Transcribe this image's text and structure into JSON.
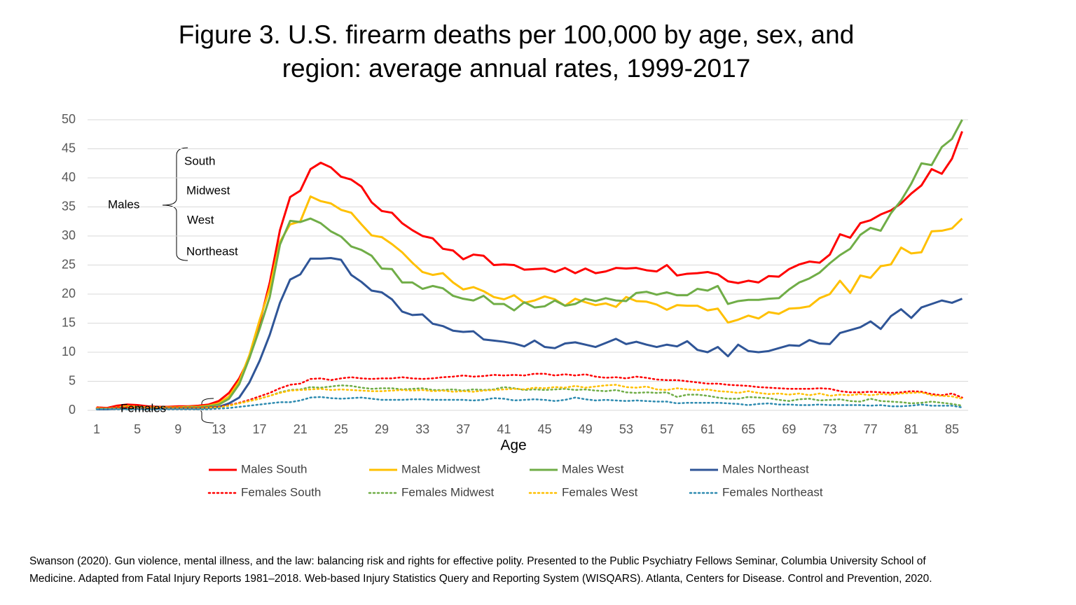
{
  "chart_data": {
    "type": "line",
    "title": [
      "Figure 3. U.S. firearm deaths per 100,000 by age, sex, and",
      "region: average annual rates, 1999-2017"
    ],
    "x_label": "Age",
    "x": [
      1,
      2,
      3,
      4,
      5,
      6,
      7,
      8,
      9,
      10,
      11,
      12,
      13,
      14,
      15,
      16,
      17,
      18,
      19,
      20,
      21,
      22,
      23,
      24,
      25,
      26,
      27,
      28,
      29,
      30,
      31,
      32,
      33,
      34,
      35,
      36,
      37,
      38,
      39,
      40,
      41,
      42,
      43,
      44,
      45,
      46,
      47,
      48,
      49,
      50,
      51,
      52,
      53,
      54,
      55,
      56,
      57,
      58,
      59,
      60,
      61,
      62,
      63,
      64,
      65,
      66,
      67,
      68,
      69,
      70,
      71,
      72,
      73,
      74,
      75,
      76,
      77,
      78,
      79,
      80,
      81,
      82,
      83,
      84,
      85,
      86
    ],
    "xlim": [
      1,
      86
    ],
    "xticks": [
      1,
      5,
      9,
      13,
      17,
      21,
      25,
      29,
      33,
      37,
      41,
      45,
      49,
      53,
      57,
      61,
      65,
      69,
      73,
      77,
      81,
      85
    ],
    "ylim": [
      0,
      50
    ],
    "yticks": [
      0,
      5,
      10,
      15,
      20,
      25,
      30,
      35,
      40,
      45,
      50
    ],
    "grid": true,
    "series": [
      {
        "name": "Males South",
        "color": "#ff0000",
        "style": "solid",
        "values": [
          0.5,
          0.4,
          0.8,
          1.0,
          0.9,
          0.7,
          0.6,
          0.6,
          0.7,
          0.7,
          0.8,
          1.0,
          1.6,
          3.0,
          5.5,
          9.0,
          15,
          22,
          31,
          36.7,
          37.8,
          41.5,
          42.6,
          41.8,
          40.2,
          39.7,
          38.5,
          35.8,
          34.3,
          34.0,
          32.2,
          31.0,
          30.0,
          29.6,
          27.8,
          27.5,
          26.0,
          26.8,
          26.6,
          25.0,
          25.1,
          25.0,
          24.2,
          24.3,
          24.4,
          23.8,
          24.5,
          23.6,
          24.4,
          23.6,
          23.9,
          24.5,
          24.4,
          24.5,
          24.1,
          23.9,
          25.0,
          23.2,
          23.5,
          23.6,
          23.8,
          23.4,
          22.2,
          21.9,
          22.3,
          22.0,
          23.1,
          23.0,
          24.3,
          25.1,
          25.6,
          25.4,
          26.8,
          30.3,
          29.7,
          32.2,
          32.7,
          33.7,
          34.4,
          35.6,
          37.3,
          38.7,
          41.5,
          40.7,
          43.3,
          48.0
        ]
      },
      {
        "name": "Males Midwest",
        "color": "#ffc000",
        "style": "solid",
        "values": [
          0.4,
          0.3,
          0.5,
          0.7,
          0.6,
          0.5,
          0.5,
          0.5,
          0.5,
          0.6,
          0.6,
          0.8,
          1.2,
          2.4,
          5.0,
          9.5,
          15.5,
          21,
          29,
          32,
          32.5,
          36.8,
          36.0,
          35.6,
          34.5,
          34.0,
          32.0,
          30.1,
          29.8,
          28.6,
          27.2,
          25.4,
          23.8,
          23.3,
          23.6,
          22.0,
          20.8,
          21.2,
          20.5,
          19.5,
          19.1,
          19.8,
          18.5,
          18.9,
          19.6,
          19.1,
          18.0,
          19.2,
          18.6,
          18.1,
          18.4,
          17.8,
          19.5,
          18.8,
          18.7,
          18.2,
          17.3,
          18.1,
          18.0,
          18.0,
          17.2,
          17.5,
          15.1,
          15.6,
          16.3,
          15.8,
          16.9,
          16.6,
          17.5,
          17.6,
          17.9,
          19.3,
          20.0,
          22.3,
          20.2,
          23.2,
          22.8,
          24.8,
          25.1,
          28.0,
          27.0,
          27.2,
          30.8,
          30.9,
          31.3,
          33.0
        ]
      },
      {
        "name": "Males West",
        "color": "#70ad47",
        "style": "solid",
        "values": [
          0.3,
          0.3,
          0.4,
          0.5,
          0.5,
          0.4,
          0.4,
          0.4,
          0.4,
          0.5,
          0.5,
          0.7,
          1.0,
          2.0,
          4.5,
          9.0,
          14.0,
          19.5,
          28.5,
          32.6,
          32.4,
          33.0,
          32.2,
          30.8,
          29.9,
          28.2,
          27.6,
          26.6,
          24.4,
          24.3,
          22.0,
          22.0,
          20.9,
          21.4,
          21.0,
          19.7,
          19.2,
          18.9,
          19.7,
          18.3,
          18.3,
          17.2,
          18.6,
          17.7,
          17.9,
          18.9,
          18.0,
          18.3,
          19.2,
          18.8,
          19.3,
          18.9,
          18.8,
          20.2,
          20.4,
          19.9,
          20.3,
          19.8,
          19.8,
          20.9,
          20.6,
          21.4,
          18.3,
          18.8,
          19.0,
          19.0,
          19.2,
          19.3,
          20.8,
          22.0,
          22.7,
          23.7,
          25.3,
          26.7,
          27.8,
          30.2,
          31.4,
          30.9,
          33.9,
          36.1,
          39.0,
          42.5,
          42.2,
          45.3,
          46.7,
          50.0
        ]
      },
      {
        "name": "Males Northeast",
        "color": "#2f5597",
        "style": "solid",
        "values": [
          0.2,
          0.2,
          0.3,
          0.3,
          0.3,
          0.3,
          0.3,
          0.3,
          0.3,
          0.3,
          0.3,
          0.4,
          0.6,
          1.2,
          2.2,
          4.8,
          8.5,
          13,
          18.5,
          22.5,
          23.4,
          26.1,
          26.1,
          26.2,
          25.9,
          23.3,
          22.1,
          20.6,
          20.3,
          19.1,
          17.0,
          16.4,
          16.5,
          14.9,
          14.5,
          13.7,
          13.5,
          13.6,
          12.2,
          12.0,
          11.8,
          11.5,
          11.0,
          12.0,
          10.9,
          10.7,
          11.5,
          11.7,
          11.3,
          10.9,
          11.6,
          12.3,
          11.4,
          11.8,
          11.3,
          10.9,
          11.3,
          11.0,
          11.9,
          10.4,
          10.0,
          10.9,
          9.3,
          11.3,
          10.2,
          10.0,
          10.2,
          10.7,
          11.2,
          11.1,
          12.1,
          11.5,
          11.4,
          13.3,
          13.8,
          14.3,
          15.3,
          14.0,
          16.2,
          17.4,
          15.9,
          17.7,
          18.3,
          18.9,
          18.5,
          19.2
        ]
      },
      {
        "name": "Females South",
        "color": "#ff0000",
        "style": "dotted",
        "values": [
          0.4,
          0.4,
          0.5,
          0.5,
          0.4,
          0.4,
          0.4,
          0.4,
          0.4,
          0.4,
          0.4,
          0.5,
          0.6,
          0.9,
          1.3,
          1.8,
          2.4,
          3.0,
          3.8,
          4.4,
          4.6,
          5.4,
          5.5,
          5.2,
          5.5,
          5.7,
          5.5,
          5.4,
          5.5,
          5.5,
          5.7,
          5.5,
          5.4,
          5.5,
          5.7,
          5.8,
          6.0,
          5.8,
          5.9,
          6.1,
          6.0,
          6.1,
          6.0,
          6.3,
          6.3,
          6.0,
          6.2,
          6.0,
          6.2,
          5.8,
          5.6,
          5.7,
          5.5,
          5.8,
          5.6,
          5.3,
          5.2,
          5.2,
          5.0,
          4.8,
          4.6,
          4.6,
          4.4,
          4.3,
          4.2,
          4.0,
          3.9,
          3.8,
          3.7,
          3.7,
          3.7,
          3.8,
          3.7,
          3.3,
          3.1,
          3.1,
          3.2,
          3.1,
          3.0,
          3.1,
          3.3,
          3.2,
          2.8,
          2.6,
          2.9,
          2.2
        ]
      },
      {
        "name": "Females Midwest",
        "color": "#70ad47",
        "style": "dotted",
        "values": [
          0.3,
          0.3,
          0.3,
          0.3,
          0.3,
          0.3,
          0.3,
          0.3,
          0.3,
          0.3,
          0.3,
          0.4,
          0.5,
          0.8,
          1.2,
          1.6,
          2.0,
          2.5,
          3.1,
          3.5,
          3.6,
          4.0,
          3.9,
          4.1,
          4.3,
          4.2,
          3.9,
          3.7,
          3.8,
          3.8,
          3.6,
          3.7,
          3.8,
          3.5,
          3.5,
          3.6,
          3.4,
          3.6,
          3.5,
          3.6,
          4.0,
          3.8,
          3.5,
          3.6,
          3.5,
          3.6,
          3.7,
          3.5,
          3.6,
          3.4,
          3.3,
          3.5,
          3.1,
          3.0,
          3.1,
          3.0,
          3.1,
          2.3,
          2.7,
          2.7,
          2.5,
          2.2,
          2.0,
          2.0,
          2.3,
          2.2,
          2.1,
          1.8,
          1.6,
          1.9,
          2.0,
          1.7,
          1.8,
          1.9,
          1.6,
          1.5,
          2.0,
          1.6,
          1.5,
          1.4,
          1.2,
          1.3,
          1.5,
          1.3,
          1.1,
          0.8
        ]
      },
      {
        "name": "Females West",
        "color": "#ffc000",
        "style": "dotted",
        "values": [
          0.3,
          0.3,
          0.3,
          0.3,
          0.3,
          0.3,
          0.3,
          0.3,
          0.3,
          0.3,
          0.3,
          0.4,
          0.5,
          0.8,
          1.2,
          1.6,
          2.0,
          2.5,
          3.0,
          3.4,
          3.5,
          3.6,
          3.7,
          3.5,
          3.6,
          3.5,
          3.4,
          3.3,
          3.3,
          3.4,
          3.5,
          3.4,
          3.5,
          3.3,
          3.4,
          3.2,
          3.3,
          3.2,
          3.4,
          3.5,
          3.6,
          3.7,
          3.6,
          3.9,
          3.8,
          4.0,
          3.9,
          4.2,
          3.9,
          4.1,
          4.3,
          4.4,
          4.0,
          3.9,
          4.1,
          3.6,
          3.5,
          3.8,
          3.6,
          3.5,
          3.6,
          3.3,
          3.2,
          3.0,
          3.3,
          3.0,
          2.8,
          2.9,
          2.7,
          2.9,
          2.6,
          2.9,
          2.5,
          2.7,
          2.6,
          2.8,
          2.6,
          2.8,
          2.7,
          2.9,
          3.0,
          3.1,
          2.6,
          2.5,
          2.4,
          2.0
        ]
      },
      {
        "name": "Females Northeast",
        "color": "#2e8bb0",
        "style": "dotted",
        "values": [
          0.2,
          0.2,
          0.2,
          0.2,
          0.2,
          0.2,
          0.2,
          0.2,
          0.2,
          0.2,
          0.2,
          0.2,
          0.3,
          0.4,
          0.6,
          0.8,
          1.0,
          1.2,
          1.4,
          1.4,
          1.7,
          2.2,
          2.3,
          2.1,
          2.0,
          2.1,
          2.2,
          2.0,
          1.8,
          1.8,
          1.8,
          1.9,
          1.9,
          1.8,
          1.8,
          1.8,
          1.8,
          1.7,
          1.8,
          2.1,
          2.0,
          1.7,
          1.8,
          1.9,
          1.8,
          1.6,
          1.8,
          2.2,
          1.9,
          1.7,
          1.8,
          1.7,
          1.6,
          1.7,
          1.6,
          1.5,
          1.5,
          1.2,
          1.3,
          1.3,
          1.3,
          1.3,
          1.2,
          1.1,
          0.9,
          1.1,
          1.2,
          1.0,
          1.0,
          0.9,
          0.9,
          1.0,
          0.9,
          0.9,
          0.9,
          0.9,
          0.8,
          0.9,
          0.7,
          0.7,
          0.8,
          1.0,
          0.8,
          0.8,
          0.8,
          0.5
        ]
      }
    ],
    "annotations": [
      {
        "text": "Males",
        "color": "#000000"
      },
      {
        "text": "Females",
        "color": "#000000"
      },
      {
        "text": "South",
        "color": "#e00000"
      },
      {
        "text": "Midwest",
        "color": "#d98c00"
      },
      {
        "text": "West",
        "color": "#5a9a3a"
      },
      {
        "text": "Northeast",
        "color": "#203f80"
      }
    ],
    "source": [
      "Swanson (2020). Gun violence, mental illness, and the law: balancing risk and rights for effective polity. Presented to the Public Psychiatry Fellows Seminar, Columbia University School of",
      "Medicine.  Adapted from Fatal Injury Reports 1981–2018.  Web-based Injury Statistics Query and Reporting System (WISQARS). Atlanta, Centers for Disease. Control and Prevention, 2020."
    ]
  }
}
